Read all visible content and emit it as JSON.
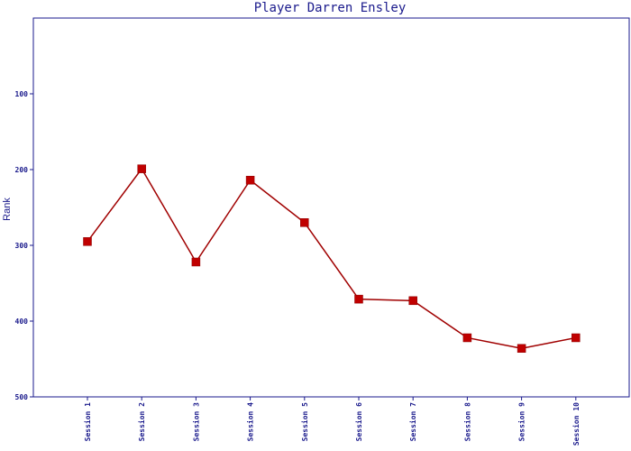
{
  "chart_data": {
    "type": "line",
    "title": "Player Darren Ensley",
    "xlabel": "",
    "ylabel": "Rank",
    "categories": [
      "Session 1",
      "Session 2",
      "Session 3",
      "Session 4",
      "Session 5",
      "Session 6",
      "Session 7",
      "Session 8",
      "Session 9",
      "Session 10"
    ],
    "series": [
      {
        "values": [
          295,
          199,
          322,
          214,
          270,
          371,
          373,
          422,
          436,
          422
        ]
      }
    ],
    "y_ticks": [
      100,
      200,
      300,
      400,
      500
    ],
    "ylim": [
      0,
      500
    ],
    "y_inverted": true,
    "grid": false,
    "legend": "none",
    "colors": {
      "line": "#a00000",
      "marker": "#c00000",
      "axis": "#1a1a8c",
      "text": "#1a1a8c"
    }
  }
}
